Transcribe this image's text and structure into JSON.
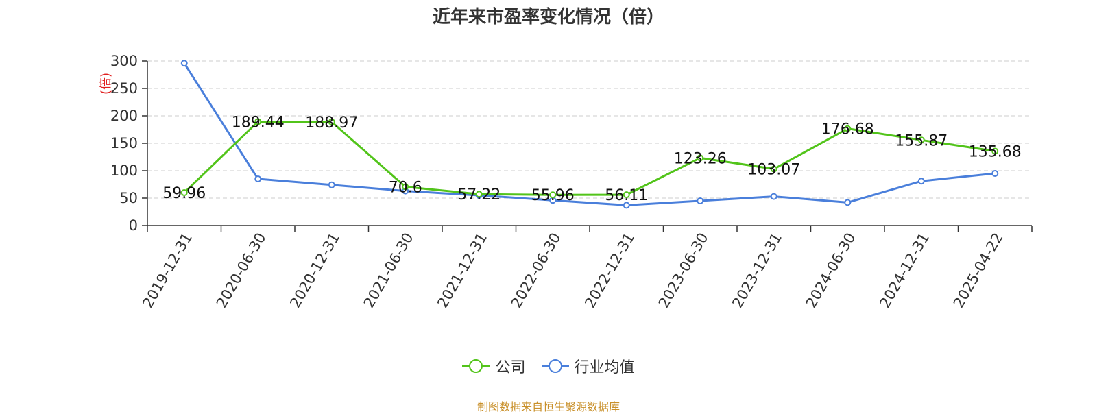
{
  "title": "近年来市盈率变化情况（倍）",
  "source": "制图数据来自恒生聚源数据库",
  "colors": {
    "company": "#52c41a",
    "industry": "#4a7fdb",
    "grid": "#cccccc",
    "axis": "#333333",
    "ylabel": "#e02020",
    "source": "#c9902a"
  },
  "chart_data": {
    "type": "line",
    "title": "近年来市盈率变化情况（倍）",
    "xlabel": "",
    "ylabel": "(倍)",
    "ylim": [
      0,
      300
    ],
    "yticks": [
      0,
      50,
      100,
      150,
      200,
      250,
      300
    ],
    "grid": true,
    "legend_position": "bottom-center",
    "x": [
      "2019-12-31",
      "2020-06-30",
      "2020-12-31",
      "2021-06-30",
      "2021-12-31",
      "2022-06-30",
      "2022-12-31",
      "2023-06-30",
      "2023-12-31",
      "2024-06-30",
      "2024-12-31",
      "2025-04-22"
    ],
    "series": [
      {
        "name": "公司",
        "color": "#52c41a",
        "labels": true,
        "values": [
          59.96,
          189.44,
          188.97,
          70.6,
          57.22,
          55.96,
          56.11,
          123.26,
          103.07,
          176.68,
          155.87,
          135.68
        ]
      },
      {
        "name": "行业均值",
        "color": "#4a7fdb",
        "labels": false,
        "values": [
          296,
          85,
          74,
          63,
          55,
          46,
          37,
          45,
          53,
          42,
          81,
          95
        ]
      }
    ]
  }
}
